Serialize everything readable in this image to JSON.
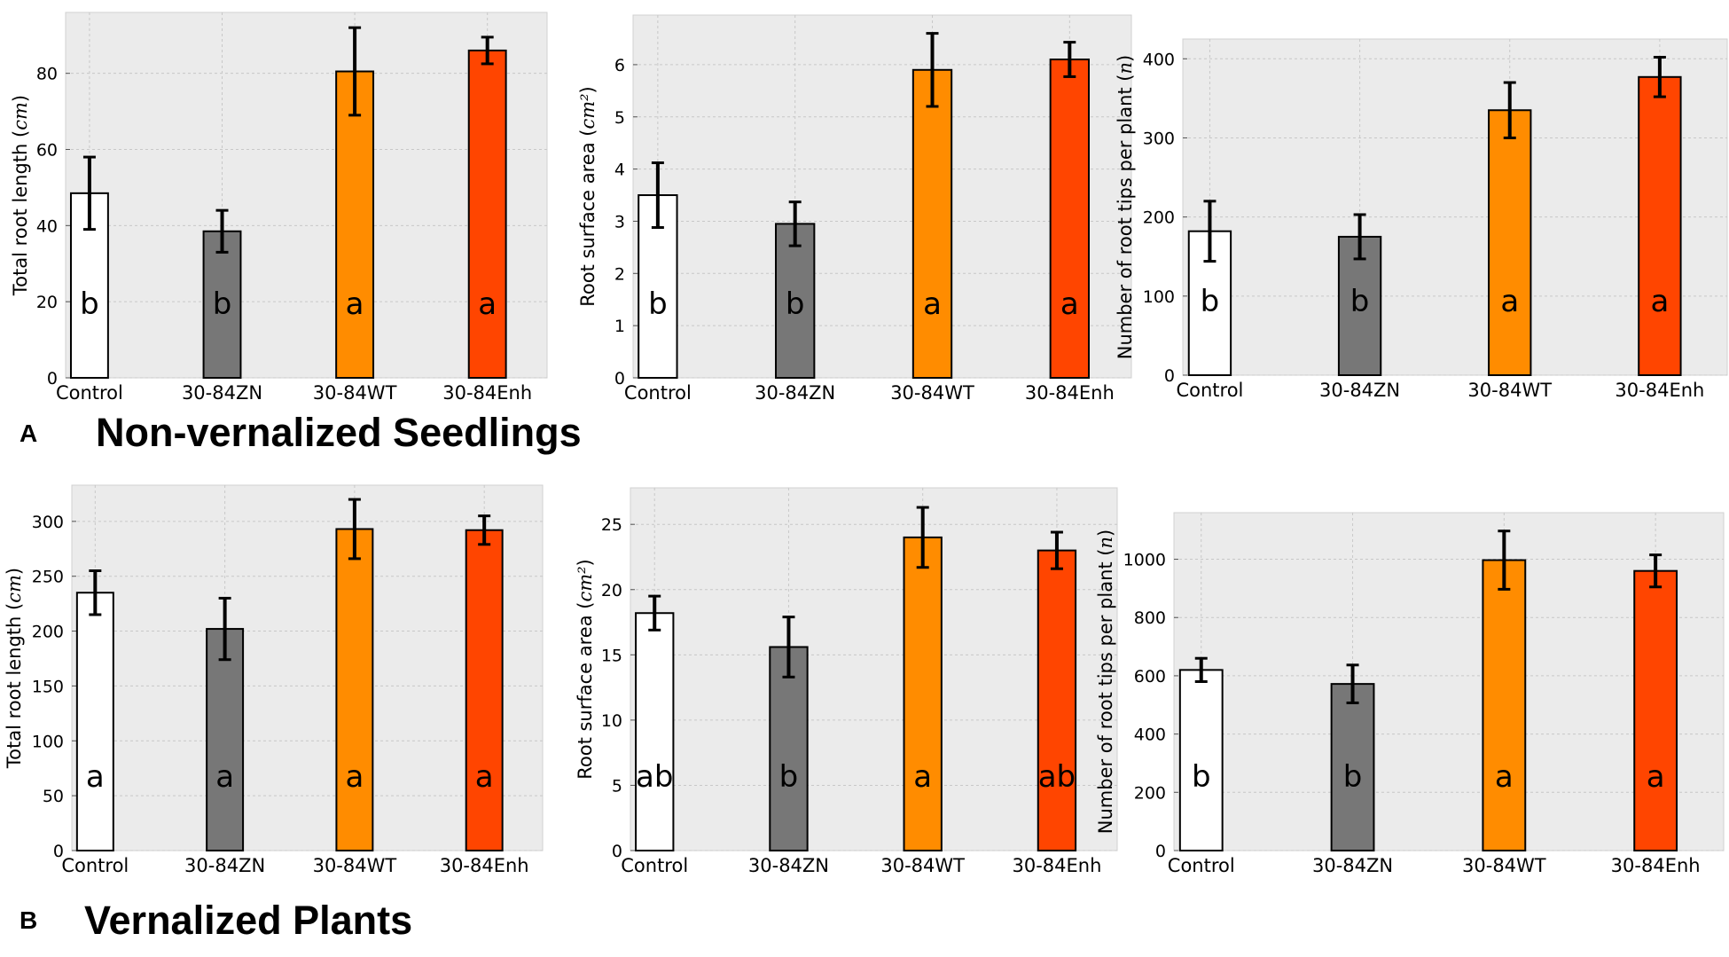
{
  "sections": [
    {
      "letter": "A",
      "title": "Non-vernalized Seedlings"
    },
    {
      "letter": "B",
      "title": "Vernalized Plants"
    }
  ],
  "colors": {
    "plot_bg": "#ebebeb",
    "grid": "#c8c8c8",
    "bars": [
      "#ffffff",
      "#777777",
      "#ff8c00",
      "#ff4500"
    ],
    "edge": "#000000"
  },
  "chart_data": [
    {
      "type": "bar",
      "section": "A",
      "ylabel": "Total root length",
      "ylabel_unit": "cm",
      "categories": [
        "Control",
        "30-84ZN",
        "30-84WT",
        "30-84Enh"
      ],
      "values": [
        48.5,
        38.5,
        80.5,
        86
      ],
      "errors": [
        9.5,
        5.5,
        11.5,
        3.5
      ],
      "letters": [
        "b",
        "b",
        "a",
        "a"
      ],
      "ylim": [
        0,
        96
      ],
      "yticks": [
        0,
        20,
        40,
        60,
        80
      ],
      "grid": true
    },
    {
      "type": "bar",
      "section": "A",
      "ylabel": "Root surface area",
      "ylabel_unit": "cm²",
      "categories": [
        "Control",
        "30-84ZN",
        "30-84WT",
        "30-84Enh"
      ],
      "values": [
        3.5,
        2.95,
        5.9,
        6.1
      ],
      "errors": [
        0.62,
        0.42,
        0.7,
        0.33
      ],
      "letters": [
        "b",
        "b",
        "a",
        "a"
      ],
      "ylim": [
        0,
        6.95
      ],
      "yticks": [
        0,
        1,
        2,
        3,
        4,
        5,
        6
      ],
      "grid": true
    },
    {
      "type": "bar",
      "section": "A",
      "ylabel": "Number of root tips per plant",
      "ylabel_unit": "n",
      "categories": [
        "Control",
        "30-84ZN",
        "30-84WT",
        "30-84Enh"
      ],
      "values": [
        182,
        175,
        335,
        377
      ],
      "errors": [
        38,
        28,
        35,
        25
      ],
      "letters": [
        "b",
        "b",
        "a",
        "a"
      ],
      "ylim": [
        0,
        425
      ],
      "yticks": [
        0,
        100,
        200,
        300,
        400
      ],
      "grid": true
    },
    {
      "type": "bar",
      "section": "B",
      "ylabel": "Total root length",
      "ylabel_unit": "cm",
      "categories": [
        "Control",
        "30-84ZN",
        "30-84WT",
        "30-84Enh"
      ],
      "values": [
        235,
        202,
        293,
        292
      ],
      "errors": [
        20,
        28,
        27,
        13
      ],
      "letters": [
        "a",
        "a",
        "a",
        "a"
      ],
      "ylim": [
        0,
        333
      ],
      "yticks": [
        0,
        50,
        100,
        150,
        200,
        250,
        300
      ],
      "grid": true
    },
    {
      "type": "bar",
      "section": "B",
      "ylabel": "Root surface area",
      "ylabel_unit": "cm²",
      "categories": [
        "Control",
        "30-84ZN",
        "30-84WT",
        "30-84Enh"
      ],
      "values": [
        18.2,
        15.6,
        24,
        23
      ],
      "errors": [
        1.3,
        2.3,
        2.3,
        1.4
      ],
      "letters": [
        "ab",
        "b",
        "a",
        "ab"
      ],
      "ylim": [
        0,
        27.8
      ],
      "yticks": [
        0,
        5,
        10,
        15,
        20,
        25
      ],
      "grid": true
    },
    {
      "type": "bar",
      "section": "B",
      "ylabel": "Number of root tips per plant",
      "ylabel_unit": "n",
      "categories": [
        "Control",
        "30-84ZN",
        "30-84WT",
        "30-84Enh"
      ],
      "values": [
        620,
        572,
        997,
        960
      ],
      "errors": [
        40,
        65,
        100,
        55
      ],
      "letters": [
        "b",
        "b",
        "a",
        "a"
      ],
      "ylim": [
        0,
        1160
      ],
      "yticks": [
        0,
        200,
        400,
        600,
        800,
        1000
      ],
      "grid": true
    }
  ]
}
